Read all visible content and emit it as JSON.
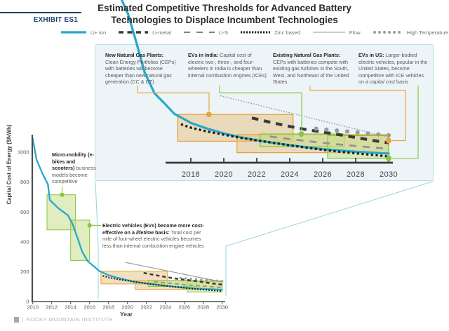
{
  "exhibit_label": "EXHIBIT ES1",
  "title": {
    "line1": "Estimated Competitive Thresholds for Advanced Battery",
    "line2": "Technologies to Displace Incumbent Technologies"
  },
  "legend": {
    "items": [
      {
        "label": "Li+ ion",
        "style": "li_ion"
      },
      {
        "label": "Li-metal",
        "style": "li_metal"
      },
      {
        "label": "Li-S",
        "style": "li_s"
      },
      {
        "label": "Zinc based",
        "style": "zinc"
      },
      {
        "label": "Flow",
        "style": "flow"
      },
      {
        "label": "High Temperature",
        "style": "high_temp"
      }
    ]
  },
  "inset": {
    "annotations": [
      {
        "heading": "New Natural Gas Plants:",
        "body_pre": "Clean Energy Portfolios (CEPs) with batteries will become cheaper than new natural gas generation (CC & CT)",
        "body_italic": "",
        "body_post": ""
      },
      {
        "heading": "EVs in India:",
        "body_pre": " Capital cost of electric two-, three-, and four-wheelers in India is cheaper than internal combustion engines (ICEs)",
        "body_italic": "",
        "body_post": ""
      },
      {
        "heading": "Existing Natural Gas Plants:",
        "body_pre": "CEPs with batteries compete with existing gas turbines in the South, West, and Northeast of the United States.",
        "body_italic": "",
        "body_post": ""
      },
      {
        "heading": "EVs in US:",
        "body_pre": " Larger-bodied electric vehicles, popular in the United States, become competitive with ICE vehicles on a ",
        "body_italic": "capital cost",
        "body_post": " basis"
      }
    ]
  },
  "main": {
    "annotations": {
      "micro": {
        "bold": "Micro-mobility (e-bikes and scooters)",
        "body": " business models become competitive"
      },
      "ev": {
        "bold_pre": "Electric vehicles (EVs) become more cost-effective on a ",
        "bold_italic": "lifetime",
        "bold_post": " basis:",
        "body": " Total cost per mile of four-wheel electric vehicles becomes less than internal combustion engine vehicles"
      }
    },
    "ylabel": "Capital Cost of Energy ($/kWh)",
    "xlabel": "Year"
  },
  "footer": {
    "separator": "|",
    "text": "ROCKY MOUNTAIN INSTITUTE"
  },
  "colors": {
    "accent_teal": "#29a8c8",
    "orange": "#e8a33c",
    "green": "#8cc63f",
    "green_fill": "rgba(201,222,141,0.55)",
    "tan_fill": "rgba(228,191,124,0.5)",
    "inset_bg": "#edf4f8",
    "inset_border": "#b9dde9",
    "li_metal": "#3a3a3a",
    "zinc": "#1e1e1e",
    "li_s": "#8f9193",
    "flow": "#939598",
    "high_temp": "#9b9da0",
    "lens": "#9ad3e0",
    "axis": "#4d4d4f",
    "tick_text": "#58595b",
    "navy": "#1c3f6e"
  },
  "chart_data": {
    "type": "line",
    "title": "Estimated Competitive Thresholds for Advanced Battery Technologies to Displace Incumbent Technologies",
    "xlabel": "Year",
    "ylabel": "Capital Cost of Energy ($/kWh)",
    "main_axis": {
      "x_ticks": [
        2010,
        2012,
        2014,
        2016,
        2018,
        2020,
        2022,
        2024,
        2026,
        2028,
        2030
      ],
      "y_ticks": [
        0,
        200,
        400,
        600,
        800,
        1000
      ],
      "x_range": [
        2010,
        2030.3
      ],
      "y_range": [
        0,
        1115
      ],
      "grid": false
    },
    "inset_axis": {
      "x_ticks": [
        2018,
        2020,
        2022,
        2024,
        2026,
        2028,
        2030
      ],
      "x_range": [
        2016.5,
        2030.3
      ],
      "note": "magnified view of 2017-2030, ~0-280 $/kWh"
    },
    "legend_position": "top",
    "series": [
      {
        "name": "Li+ ion",
        "style": "li_ion",
        "points": [
          [
            2010,
            1090
          ],
          [
            2010.4,
            950
          ],
          [
            2011,
            860
          ],
          [
            2011.6,
            785
          ],
          [
            2011.8,
            680
          ],
          [
            2012.7,
            625
          ],
          [
            2013.7,
            578
          ],
          [
            2014.2,
            520
          ],
          [
            2014.7,
            430
          ],
          [
            2015.2,
            336
          ],
          [
            2015.8,
            270
          ],
          [
            2016.4,
            238
          ],
          [
            2017,
            205
          ],
          [
            2017.6,
            188
          ],
          [
            2018,
            176
          ],
          [
            2019,
            158
          ],
          [
            2020,
            143
          ],
          [
            2021,
            131
          ],
          [
            2022,
            121
          ],
          [
            2023,
            113
          ],
          [
            2024,
            106
          ],
          [
            2025,
            99
          ],
          [
            2026,
            93
          ],
          [
            2027,
            89
          ],
          [
            2028,
            85
          ],
          [
            2029,
            82
          ],
          [
            2030,
            79
          ]
        ]
      },
      {
        "name": "Zinc based",
        "style": "zinc",
        "points": [
          [
            2017.4,
            172
          ],
          [
            2018,
            161
          ],
          [
            2019,
            149
          ],
          [
            2020,
            139
          ],
          [
            2021,
            129
          ],
          [
            2022,
            121
          ],
          [
            2023,
            113
          ],
          [
            2024,
            105
          ],
          [
            2025,
            98
          ],
          [
            2026,
            91
          ],
          [
            2027,
            85
          ],
          [
            2028,
            80
          ],
          [
            2029,
            75
          ],
          [
            2030,
            70
          ]
        ]
      },
      {
        "name": "Li-metal",
        "style": "li_metal",
        "points": [
          [
            2021.7,
            192
          ],
          [
            2023,
            176
          ],
          [
            2024,
            165
          ],
          [
            2025,
            155
          ],
          [
            2026,
            147
          ],
          [
            2027,
            139
          ],
          [
            2028,
            130
          ],
          [
            2029,
            121
          ],
          [
            2030,
            113
          ]
        ]
      },
      {
        "name": "Li-S",
        "style": "li_s",
        "points": [
          [
            2022.8,
            133
          ],
          [
            2024,
            125
          ],
          [
            2026,
            113
          ],
          [
            2028,
            103
          ],
          [
            2030,
            94
          ]
        ]
      },
      {
        "name": "Flow",
        "style": "flow",
        "points": [
          [
            2019.8,
            262
          ],
          [
            2030,
            131
          ]
        ]
      },
      {
        "name": "High Temperature",
        "style": "high_temp",
        "points": [
          [
            2025.6,
            158
          ],
          [
            2030,
            137
          ]
        ]
      }
    ],
    "thresholds": [
      {
        "id": "micro_mobility",
        "label": "Micro-mobility (e-bikes and scooters) business models become competitive",
        "color": "green",
        "years": [
          2011.5,
          2014.5
        ],
        "values": [
          480,
          715
        ],
        "dot": [
          2013.1,
          715
        ],
        "show_in": "main"
      },
      {
        "id": "ev_lifetime",
        "label": "Electric vehicles (EVs) become more cost-effective on a lifetime basis",
        "color": "green",
        "years": [
          2014,
          2016
        ],
        "values": [
          275,
          545
        ],
        "dot": [
          2016,
          510
        ],
        "show_in": "main"
      },
      {
        "id": "new_gas",
        "label": "New Natural Gas Plants",
        "color": "orange",
        "years": [
          2017.2,
          2024.2
        ],
        "values": [
          118,
          203
        ],
        "dot": [
          2019.1,
          203
        ],
        "show_in": "both"
      },
      {
        "id": "existing_gas",
        "label": "Existing Natural Gas Plants",
        "color": "orange",
        "years": [
          2020.8,
          2030
        ],
        "values": [
          82,
          139
        ],
        "dot": [
          2030,
          120
        ],
        "show_in": "both"
      },
      {
        "id": "evs_india",
        "label": "EVs in India",
        "color": "green",
        "years": [
          2022.2,
          2027.3
        ],
        "values": [
          101,
          141
        ],
        "dot": [
          2024.7,
          141
        ],
        "show_in": "both"
      },
      {
        "id": "evs_us",
        "label": "EVs in US",
        "color": "green",
        "years": [
          2026.3,
          2030
        ],
        "values": [
          64,
          136
        ],
        "dot": [
          2030,
          64
        ],
        "show_in": "both"
      }
    ]
  }
}
